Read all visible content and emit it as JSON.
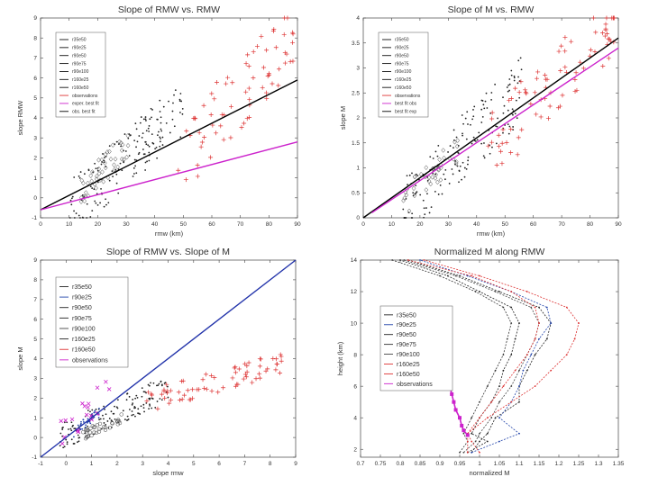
{
  "chart_data": [
    {
      "id": "p1",
      "type": "scatter",
      "title": "Slope of RMW vs. RMW",
      "xlabel": "rmw (km)",
      "ylabel": "slope RMW",
      "xlim": [
        0,
        90
      ],
      "ylim": [
        -1,
        9
      ],
      "xticks": [
        0,
        10,
        20,
        30,
        40,
        50,
        60,
        70,
        80,
        90
      ],
      "yticks": [
        -1,
        0,
        1,
        2,
        3,
        4,
        5,
        6,
        7,
        8,
        9
      ],
      "legend": [
        "r35e50",
        "r90e25",
        "r90e50",
        "r90e75",
        "r90e100",
        "r160e25",
        "r160e50",
        "observations",
        "exper. best fit",
        "obs. best fit"
      ],
      "legend_colors": [
        "#111111",
        "#111111",
        "#111111",
        "#111111",
        "#111111",
        "#111111",
        "#111111",
        "#dd3333",
        "#cc22cc",
        "#000000"
      ],
      "clusters": [
        {
          "name": "simulations",
          "color": "#222222",
          "marker": "dot",
          "x": [
            10,
            50
          ],
          "y": [
            -0.6,
            4.5
          ],
          "n": 170
        },
        {
          "name": "diamonds",
          "color": "#444444",
          "marker": "diamond",
          "x": [
            14,
            32
          ],
          "y": [
            0.3,
            2.9
          ],
          "n": 45
        },
        {
          "name": "observations",
          "color": "#dd3333",
          "marker": "plus",
          "x": [
            48,
            90
          ],
          "y": [
            1.8,
            8.5
          ],
          "n": 70
        }
      ],
      "lines": [
        {
          "name": "obs. best fit",
          "color": "#000000",
          "x": [
            0,
            90
          ],
          "y": [
            -0.6,
            5.9
          ]
        },
        {
          "name": "exper. best fit",
          "color": "#cc22cc",
          "x": [
            0,
            90
          ],
          "y": [
            -0.6,
            2.8
          ]
        }
      ]
    },
    {
      "id": "p2",
      "type": "scatter",
      "title": "Slope of M vs. RMW",
      "xlabel": "rmw (km)",
      "ylabel": "slope M",
      "xlim": [
        0,
        90
      ],
      "ylim": [
        0,
        4
      ],
      "xticks": [
        0,
        10,
        20,
        30,
        40,
        50,
        60,
        70,
        80,
        90
      ],
      "yticks": [
        0,
        0.5,
        1,
        1.5,
        2,
        2.5,
        3,
        3.5,
        4
      ],
      "legend": [
        "r35e50",
        "r90e25",
        "r90e50",
        "r90e75",
        "r90e100",
        "r160e25",
        "r160e50",
        "observations",
        "best fit obs",
        "best fit exp"
      ],
      "legend_colors": [
        "#111111",
        "#111111",
        "#111111",
        "#111111",
        "#111111",
        "#111111",
        "#111111",
        "#dd3333",
        "#cc22cc",
        "#000000"
      ],
      "clusters": [
        {
          "name": "simulations",
          "color": "#222222",
          "marker": "dot",
          "x": [
            14,
            56
          ],
          "y": [
            0.2,
            2.6
          ],
          "n": 170
        },
        {
          "name": "diamonds",
          "color": "#444444",
          "marker": "diamond",
          "x": [
            14,
            34
          ],
          "y": [
            0.3,
            1.4
          ],
          "n": 40
        },
        {
          "name": "observations",
          "color": "#dd3333",
          "marker": "plus",
          "x": [
            44,
            90
          ],
          "y": [
            1.4,
            4.0
          ],
          "n": 80
        }
      ],
      "lines": [
        {
          "name": "best fit exp",
          "color": "#000000",
          "x": [
            0,
            90
          ],
          "y": [
            0,
            3.6
          ]
        },
        {
          "name": "best fit obs",
          "color": "#cc22cc",
          "x": [
            3,
            90
          ],
          "y": [
            0.1,
            3.4
          ]
        }
      ]
    },
    {
      "id": "p3",
      "type": "scatter",
      "title": "Slope of RMW vs. Slope of M",
      "xlabel": "slope rmw",
      "ylabel": "slope M",
      "xlim": [
        -1,
        9
      ],
      "ylim": [
        -1,
        9
      ],
      "xticks": [
        -1,
        0,
        1,
        2,
        3,
        4,
        5,
        6,
        7,
        8,
        9
      ],
      "yticks": [
        -1,
        0,
        1,
        2,
        3,
        4,
        5,
        6,
        7,
        8,
        9
      ],
      "legend": [
        "r35e50",
        "r90e25",
        "r90e50",
        "r90e75",
        "r90e100",
        "r160e25",
        "r160e50",
        "observations"
      ],
      "legend_colors": [
        "#222222",
        "#2244aa",
        "#222222",
        "#222222",
        "#444444",
        "#222222",
        "#dd3333",
        "#cc22cc"
      ],
      "clusters": [
        {
          "name": "simulations",
          "color": "#222222",
          "marker": "dot",
          "x": [
            -0.3,
            4.0
          ],
          "y": [
            0.0,
            2.5
          ],
          "n": 140
        },
        {
          "name": "r90e25",
          "color": "#2244aa",
          "marker": "dot",
          "x": [
            0.3,
            1.3
          ],
          "y": [
            0.3,
            1.3
          ],
          "n": 40
        },
        {
          "name": "r90e100",
          "color": "#444444",
          "marker": "circle",
          "x": [
            0.6,
            2.2
          ],
          "y": [
            0.1,
            1.0
          ],
          "n": 35
        },
        {
          "name": "r160e50",
          "color": "#dd3333",
          "marker": "plus",
          "x": [
            3.0,
            8.6
          ],
          "y": [
            1.8,
            3.8
          ],
          "n": 70
        },
        {
          "name": "observations",
          "color": "#cc22cc",
          "marker": "cross",
          "x": [
            -0.3,
            1.8
          ],
          "y": [
            0.0,
            2.6
          ],
          "n": 20
        }
      ],
      "lines": [
        {
          "name": "one-to-one",
          "color": "#2233aa",
          "x": [
            -1,
            9
          ],
          "y": [
            -1,
            9
          ]
        }
      ]
    },
    {
      "id": "p4",
      "type": "line",
      "title": "Normalized M along RMW",
      "xlabel": "normalized M",
      "ylabel": "height (km)",
      "xlim": [
        0.7,
        1.35
      ],
      "ylim": [
        1.5,
        14
      ],
      "xticks": [
        0.7,
        0.75,
        0.8,
        0.85,
        0.9,
        0.95,
        1,
        1.05,
        1.1,
        1.15,
        1.2,
        1.25,
        1.3,
        1.35
      ],
      "xtick_labels": [
        "0.7",
        "0.75",
        "0.8",
        "0.85",
        "0.9",
        "0.95",
        "1",
        "1.05",
        "1.1",
        "1.15",
        "1.2",
        "1.25",
        "1.3",
        "1.35"
      ],
      "yticks": [
        2,
        4,
        6,
        8,
        10,
        12,
        14
      ],
      "legend": [
        "r35e50",
        "r90e25",
        "r90e50",
        "r90e75",
        "r90e100",
        "r160e25",
        "r160e50",
        "observations"
      ],
      "legend_colors": [
        "#222222",
        "#2244aa",
        "#222222",
        "#333333",
        "#444444",
        "#dd3333",
        "#dd3333",
        "#cc22cc"
      ],
      "series": [
        {
          "name": "r35e50",
          "color": "#222222",
          "y": [
            1.8,
            2.5,
            3,
            4,
            5,
            6,
            7,
            8,
            9,
            10,
            11,
            12,
            13,
            14
          ],
          "x": [
            0.98,
            1.0,
            1.02,
            1.04,
            1.1,
            1.1,
            1.12,
            1.14,
            1.17,
            1.18,
            1.15,
            1.05,
            0.95,
            0.82
          ]
        },
        {
          "name": "r90e25",
          "color": "#2244aa",
          "y": [
            1.8,
            2.5,
            3,
            4,
            5,
            6,
            7,
            8,
            9,
            10,
            11,
            12,
            13,
            14
          ],
          "x": [
            0.98,
            1.05,
            1.1,
            1.05,
            1.08,
            1.1,
            1.11,
            1.13,
            1.15,
            1.18,
            1.17,
            1.08,
            0.97,
            0.85
          ]
        },
        {
          "name": "r90e50",
          "color": "#222222",
          "y": [
            1.8,
            2.5,
            3,
            4,
            5,
            6,
            7,
            8,
            9,
            10,
            11,
            12,
            13,
            14
          ],
          "x": [
            0.97,
            1.02,
            0.98,
            1.0,
            1.03,
            1.05,
            1.06,
            1.08,
            1.09,
            1.1,
            1.08,
            1.0,
            0.92,
            0.8
          ]
        },
        {
          "name": "r90e75",
          "color": "#333333",
          "y": [
            1.8,
            2.5,
            3,
            4,
            5,
            6,
            7,
            8,
            9,
            10,
            11,
            12,
            13,
            14
          ],
          "x": [
            0.95,
            0.97,
            0.96,
            0.98,
            1.0,
            1.02,
            1.04,
            1.06,
            1.07,
            1.08,
            1.06,
            0.99,
            0.9,
            0.78
          ]
        },
        {
          "name": "r90e100",
          "color": "#444444",
          "y": [
            1.8,
            2.5,
            3,
            4,
            5,
            6,
            7,
            8,
            9,
            10,
            11,
            12,
            13,
            14
          ],
          "x": [
            0.96,
            0.99,
            1.0,
            1.03,
            1.05,
            1.08,
            1.1,
            1.12,
            1.14,
            1.15,
            1.13,
            1.04,
            0.94,
            0.81
          ]
        },
        {
          "name": "r160e25",
          "color": "#dd3333",
          "y": [
            1.8,
            2.5,
            3,
            4,
            5,
            6,
            7,
            8,
            9,
            10,
            11,
            12,
            13,
            14
          ],
          "x": [
            1.0,
            0.98,
            0.97,
            1.02,
            1.08,
            1.14,
            1.18,
            1.22,
            1.24,
            1.25,
            1.22,
            1.12,
            1.0,
            0.86
          ]
        },
        {
          "name": "r160e50",
          "color": "#dd3333",
          "y": [
            1.8,
            2.5,
            3,
            4,
            5,
            6,
            7,
            8,
            9,
            10,
            11,
            12,
            13,
            14
          ],
          "x": [
            0.97,
            0.97,
            0.97,
            1.0,
            1.03,
            1.06,
            1.09,
            1.12,
            1.14,
            1.15,
            1.14,
            1.08,
            0.98,
            0.82
          ]
        },
        {
          "name": "observations",
          "color": "#cc22cc",
          "marker": "filled-square",
          "y": [
            2.9,
            3.2,
            3.5,
            4.0,
            4.5,
            5.0,
            5.5,
            6.0,
            6.5,
            7.0,
            7.5,
            8.0
          ],
          "x": [
            0.97,
            0.96,
            0.955,
            0.95,
            0.94,
            0.935,
            0.93,
            0.925,
            0.92,
            0.915,
            0.91,
            0.9
          ]
        }
      ]
    }
  ]
}
